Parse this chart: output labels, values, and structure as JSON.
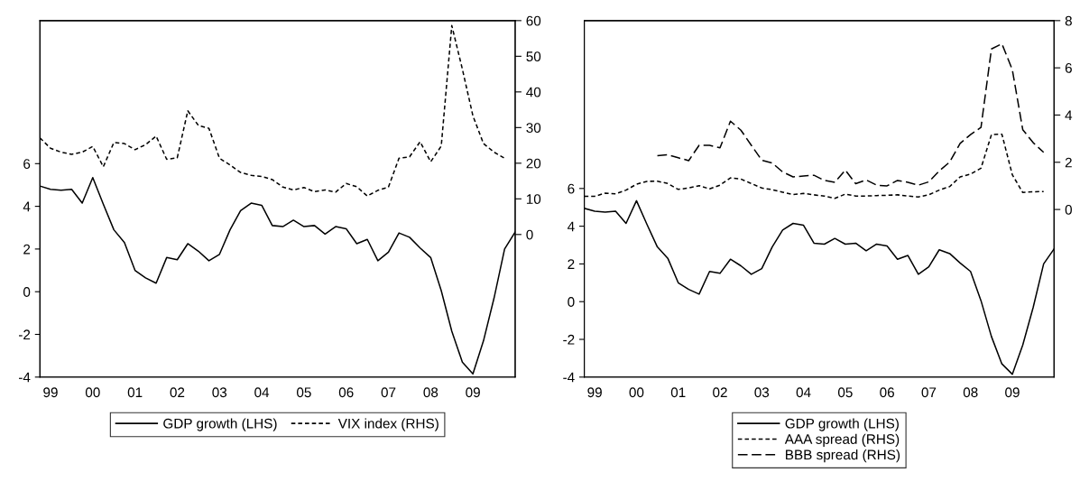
{
  "chart_data": [
    {
      "type": "line",
      "legend": "bottom",
      "grid": false,
      "categories": [
        null,
        "99",
        null,
        null,
        null,
        "00",
        null,
        null,
        null,
        "01",
        null,
        null,
        null,
        "02",
        null,
        null,
        null,
        "03",
        null,
        null,
        null,
        "04",
        null,
        null,
        null,
        "05",
        null,
        null,
        null,
        "06",
        null,
        null,
        null,
        "07",
        null,
        null,
        null,
        "08",
        null,
        null,
        null,
        "09",
        null,
        null,
        null,
        null
      ],
      "ylim": [
        -4,
        12.7
      ],
      "yticks": [
        -4,
        -2,
        0,
        2,
        4,
        6
      ],
      "y2lim": [
        -40,
        60
      ],
      "y2ticks": [
        0,
        10,
        20,
        30,
        40,
        50,
        60
      ],
      "series": [
        {
          "name": "GDP growth (LHS)",
          "color": "#000000",
          "line_style": "solid",
          "values": [
            4.95,
            4.8,
            4.75,
            4.8,
            4.15,
            5.35,
            4.1,
            2.9,
            2.3,
            1.0,
            0.65,
            0.4,
            1.6,
            1.5,
            2.25,
            1.9,
            1.45,
            1.75,
            2.9,
            3.8,
            4.15,
            4.05,
            3.1,
            3.05,
            3.35,
            3.05,
            3.1,
            2.7,
            3.05,
            2.95,
            2.25,
            2.45,
            1.45,
            1.85,
            2.75,
            2.55,
            2.05,
            1.6,
            0.05,
            -1.85,
            -3.3,
            -3.85,
            -2.3,
            -0.3,
            2.0,
            2.8
          ]
        },
        {
          "name": "VIX index (RHS)",
          "color": "#000000",
          "line_style": "dotted",
          "axis": "y2",
          "values": [
            27.1,
            24.2,
            23.1,
            22.5,
            23.1,
            24.7,
            19.0,
            25.8,
            25.5,
            23.8,
            25.2,
            27.6,
            21.1,
            21.5,
            34.7,
            30.6,
            29.8,
            21.4,
            19.5,
            17.4,
            16.6,
            16.3,
            15.4,
            13.3,
            12.5,
            13.2,
            12.0,
            12.5,
            11.9,
            14.3,
            13.4,
            10.8,
            12.4,
            13.3,
            21.4,
            21.8,
            26.0,
            20.4,
            24.8,
            58.6,
            46.4,
            33.3,
            25.5,
            23.1,
            21.4,
            null
          ]
        }
      ]
    },
    {
      "type": "line",
      "legend": "bottom",
      "grid": false,
      "categories": [
        null,
        "99",
        null,
        null,
        null,
        "00",
        null,
        null,
        null,
        "01",
        null,
        null,
        null,
        "02",
        null,
        null,
        null,
        "03",
        null,
        null,
        null,
        "04",
        null,
        null,
        null,
        "05",
        null,
        null,
        null,
        "06",
        null,
        null,
        null,
        "07",
        null,
        null,
        null,
        "08",
        null,
        null,
        null,
        "09",
        null,
        null,
        null,
        null
      ],
      "ylim": [
        -4,
        14.9
      ],
      "yticks": [
        -4,
        -2,
        0,
        2,
        4,
        6
      ],
      "y2lim": [
        -7.1,
        8
      ],
      "y2ticks": [
        0,
        2,
        4,
        6,
        8
      ],
      "series": [
        {
          "name": "GDP growth (LHS)",
          "color": "#000000",
          "line_style": "solid",
          "values": [
            4.95,
            4.8,
            4.75,
            4.8,
            4.15,
            5.35,
            4.1,
            2.9,
            2.3,
            1.0,
            0.65,
            0.4,
            1.6,
            1.5,
            2.25,
            1.9,
            1.45,
            1.75,
            2.9,
            3.8,
            4.15,
            4.05,
            3.1,
            3.05,
            3.35,
            3.05,
            3.1,
            2.7,
            3.05,
            2.95,
            2.25,
            2.45,
            1.45,
            1.85,
            2.75,
            2.55,
            2.05,
            1.6,
            0.05,
            -1.85,
            -3.3,
            -3.85,
            -2.3,
            -0.3,
            2.0,
            2.8
          ]
        },
        {
          "name": "AAA spread (RHS)",
          "color": "#000000",
          "line_style": "dotted",
          "axis": "y2",
          "values": [
            0.56,
            0.56,
            0.69,
            0.66,
            0.82,
            1.07,
            1.19,
            1.2,
            1.1,
            0.85,
            0.91,
            1.01,
            0.87,
            1.03,
            1.34,
            1.29,
            1.1,
            0.91,
            0.84,
            0.73,
            0.63,
            0.68,
            0.62,
            0.57,
            0.47,
            0.65,
            0.57,
            0.57,
            0.59,
            0.6,
            0.62,
            0.57,
            0.53,
            0.62,
            0.82,
            0.97,
            1.38,
            1.5,
            1.75,
            3.17,
            3.19,
            1.47,
            0.72,
            0.75,
            0.76,
            null
          ]
        },
        {
          "name": "BBB spread (RHS)",
          "color": "#000000",
          "line_style": "dashed",
          "axis": "y2",
          "values": [
            null,
            null,
            null,
            null,
            null,
            null,
            null,
            2.28,
            2.32,
            2.19,
            2.07,
            2.72,
            2.72,
            2.61,
            3.74,
            3.36,
            2.72,
            2.09,
            1.97,
            1.59,
            1.38,
            1.42,
            1.45,
            1.23,
            1.15,
            1.67,
            1.09,
            1.25,
            1.03,
            1.0,
            1.23,
            1.15,
            1.03,
            1.17,
            1.63,
            2.01,
            2.8,
            3.17,
            3.48,
            6.8,
            7.02,
            5.92,
            3.38,
            2.83,
            2.42,
            null
          ]
        }
      ]
    }
  ]
}
